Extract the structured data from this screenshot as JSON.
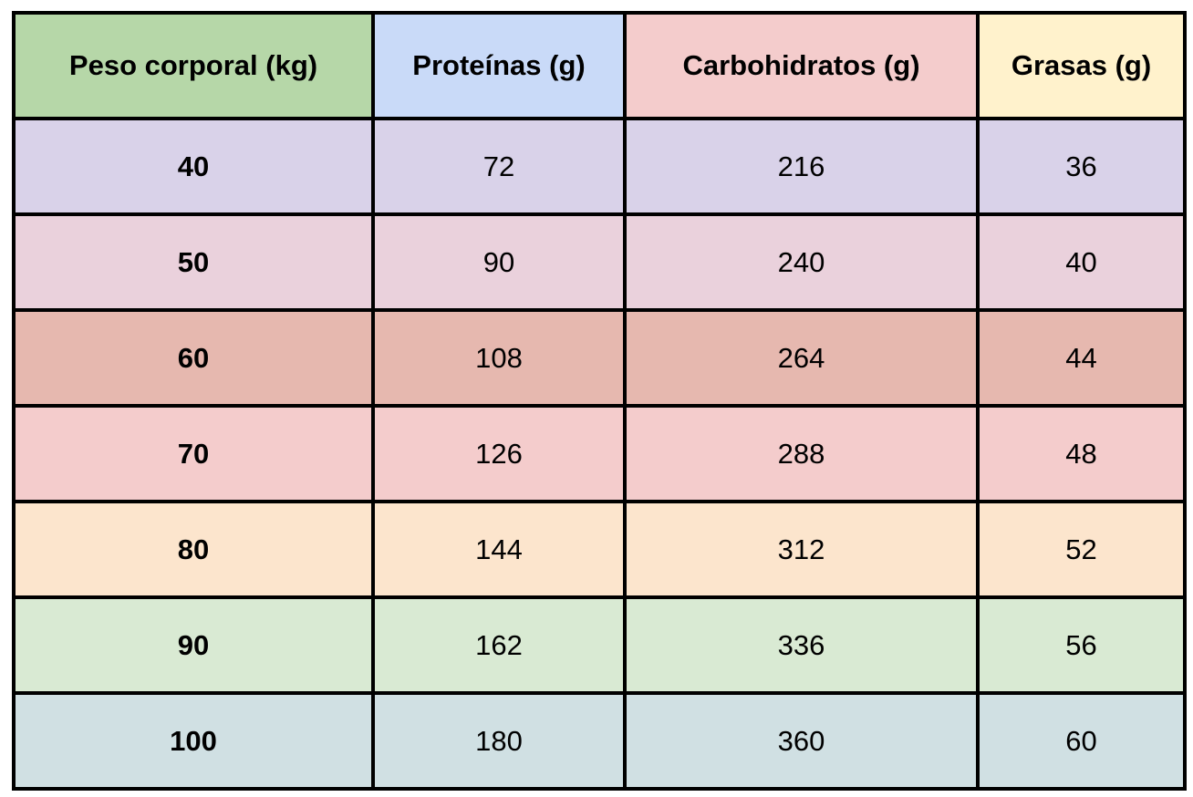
{
  "table": {
    "headers": [
      {
        "label": "Peso corporal (kg)",
        "color": "#b6d7a8"
      },
      {
        "label": "Proteínas (g)",
        "color": "#c9daf8"
      },
      {
        "label": "Carbohidratos (g)",
        "color": "#f4cccc"
      },
      {
        "label": "Grasas (g)",
        "color": "#fff2cc"
      }
    ],
    "rows": [
      {
        "cells": [
          "40",
          "72",
          "216",
          "36"
        ],
        "color": "#d9d2e9"
      },
      {
        "cells": [
          "50",
          "90",
          "240",
          "40"
        ],
        "color": "#ead1dc"
      },
      {
        "cells": [
          "60",
          "108",
          "264",
          "44"
        ],
        "color": "#e6b8af"
      },
      {
        "cells": [
          "70",
          "126",
          "288",
          "48"
        ],
        "color": "#f4cccc"
      },
      {
        "cells": [
          "80",
          "144",
          "312",
          "52"
        ],
        "color": "#fce5cd"
      },
      {
        "cells": [
          "90",
          "162",
          "336",
          "56"
        ],
        "color": "#d9ead3"
      },
      {
        "cells": [
          "100",
          "180",
          "360",
          "60"
        ],
        "color": "#d0e0e3"
      }
    ]
  }
}
